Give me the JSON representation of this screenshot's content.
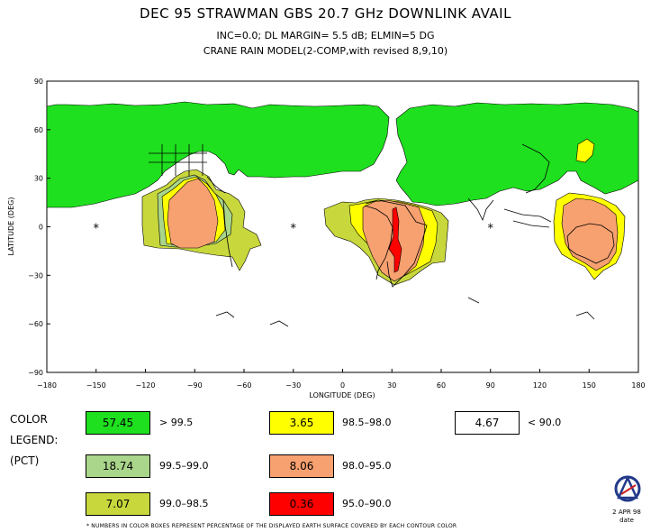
{
  "header": {
    "title": "DEC 95 STRAWMAN GBS    20.7 GHz DOWNLINK AVAIL",
    "subtitle1": "INC=0.0;  DL MARGIN= 5.5 dB;  ELMIN=5 DG",
    "subtitle2": "CRANE RAIN MODEL(2-COMP,with revised 8,9,10)"
  },
  "axes": {
    "ylabel": "LATITUDE (DEG)",
    "xlabel": "LONGITUDE (DEG)",
    "lat_ticks": [
      "90",
      "60",
      "30",
      "0",
      "−30",
      "−60",
      "−90"
    ],
    "lon_ticks": [
      "−180",
      "−150",
      "−120",
      "−90",
      "−60",
      "−30",
      "0",
      "30",
      "60",
      "90",
      "120",
      "150",
      "180"
    ]
  },
  "legend": {
    "label": "COLOR\nLEGEND:\n(PCT)",
    "entries": [
      {
        "value": "57.45",
        "range": "> 99.5",
        "color": "#1ee01e"
      },
      {
        "value": "18.74",
        "range": "99.5–99.0",
        "color": "#a9d68a"
      },
      {
        "value": "7.07",
        "range": "99.0–98.5",
        "color": "#c8d83c"
      },
      {
        "value": "3.65",
        "range": "98.5–98.0",
        "color": "#ffff00"
      },
      {
        "value": "8.06",
        "range": "98.0–95.0",
        "color": "#f7a070"
      },
      {
        "value": "0.36",
        "range": "95.0–90.0",
        "color": "#ff0000"
      },
      {
        "value": "4.67",
        "range": "< 90.0",
        "color": "#ffffff"
      }
    ]
  },
  "satellites": [
    {
      "lon": -150,
      "lat": 0
    },
    {
      "lon": -30,
      "lat": 0
    },
    {
      "lon": 90,
      "lat": 0
    }
  ],
  "footnote": "* NUMBERS IN COLOR BOXES REPRESENT PERCENTAGE OF THE DISPLAYED EARTH SURFACE COVERED BY EACH CONTOUR COLOR",
  "date": {
    "line1": "2 APR 98",
    "line2": "date"
  }
}
